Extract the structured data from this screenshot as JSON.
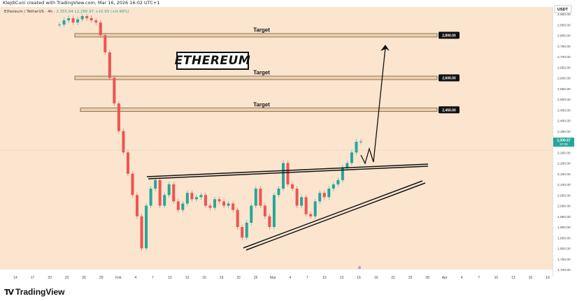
{
  "header": {
    "attribution": "KlejdiCuni created with TradingView.com, Mar 16, 2026 16:02 UTC+1"
  },
  "legend": {
    "symbol": "Ethereum / TetherUS · 4h ·",
    "values": "2,355.04  L2,280.97  +10.93 (+0.48%)"
  },
  "annotation_title": "ETHEREUM",
  "footer": {
    "brand_mark": "TV",
    "brand": "TradingView"
  },
  "colors": {
    "up": "#26a69a",
    "down": "#ef5350",
    "background": "#fbe5cf",
    "target_fill": "#f2cfa6",
    "label_bg": "#111111"
  },
  "chart_data": {
    "type": "line",
    "currency": "USDT",
    "ylim": [
      1700,
      2900
    ],
    "y_ticks": [
      "2,900.00",
      "2,850.00",
      "2,800.00",
      "2,750.00",
      "2,700.00",
      "2,650.00",
      "2,600.00",
      "2,550.00",
      "2,500.00",
      "2,450.00",
      "2,400.00",
      "2,350.00",
      "2,300.00",
      "2,250.00",
      "2,200.00",
      "2,150.00",
      "2,100.00",
      "2,050.00",
      "2,000.00",
      "1,950.00",
      "1,900.00",
      "1,850.00",
      "1,800.00",
      "1,750.00",
      "1,700.00"
    ],
    "x_ticks": [
      "14",
      "17",
      "20",
      "23",
      "26",
      "29",
      "Feb",
      "4",
      "7",
      "10",
      "13",
      "16",
      "19",
      "22",
      "25",
      "Mar",
      "4",
      "7",
      "10",
      "13",
      "16",
      "19",
      "22",
      "25",
      "28",
      "Apr",
      "4",
      "7",
      "10",
      "13",
      "16",
      "19"
    ],
    "current_price": {
      "value": 2300,
      "label": "2,300.87",
      "sublabel": "57:09"
    },
    "targets": [
      {
        "text": "Target",
        "price": 2800,
        "label": "2,800.00"
      },
      {
        "text": "Target",
        "price": 2600,
        "label": "2,600.00"
      },
      {
        "text": "Target",
        "price": 2450,
        "label": "2,450.00"
      }
    ],
    "series": [
      {
        "values": [
          2850,
          2870,
          2880,
          2860,
          2875,
          2890,
          2880,
          2870,
          2860,
          2800,
          2720,
          2600,
          2480,
          2350,
          2250,
          2150,
          2050,
          1950,
          1800,
          2000,
          2080,
          2120,
          2000,
          2050,
          2100,
          2020,
          1980,
          2010,
          2060,
          2030,
          2040,
          2050,
          2000,
          1990,
          2030,
          2020,
          2000,
          2010,
          1980,
          1900,
          1850,
          1920,
          2000,
          2080,
          2000,
          1950,
          1900,
          2050,
          2080,
          2200,
          2100,
          2080,
          2000,
          2040,
          1960,
          1950,
          2020,
          2060,
          2040,
          2080,
          2100,
          2120,
          2180,
          2200,
          2250,
          2300,
          2301
        ]
      }
    ]
  }
}
